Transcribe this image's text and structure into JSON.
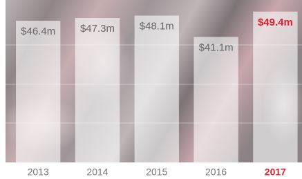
{
  "chart_data": {
    "type": "bar",
    "categories": [
      "2013",
      "2014",
      "2015",
      "2016",
      "2017"
    ],
    "values": [
      46.4,
      47.3,
      48.1,
      41.1,
      49.4
    ],
    "value_labels": [
      "$46.4m",
      "$47.3m",
      "$48.1m",
      "$41.1m",
      "$49.4m"
    ],
    "color": "rgba(255,255,255,0.6)",
    "label_color": "#666666",
    "highlight_index": 4,
    "highlight_color": "#e3202b",
    "ylim": [
      0,
      53.2
    ]
  }
}
